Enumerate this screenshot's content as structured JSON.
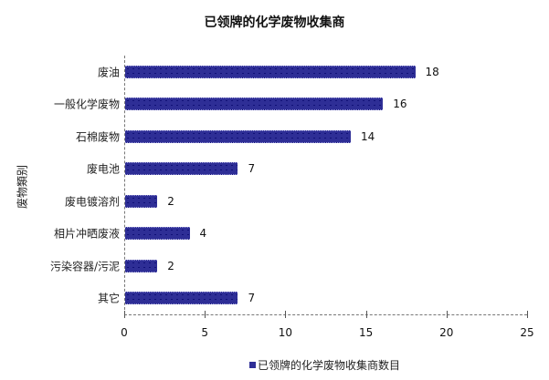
{
  "chart_data": {
    "type": "bar",
    "orientation": "horizontal",
    "title": "已领牌的化学废物收集商",
    "xlabel": "",
    "ylabel": "废物類别",
    "categories": [
      "废油",
      "一般化学废物",
      "石棉废物",
      "废电池",
      "废电镀溶剂",
      "相片冲晒废液",
      "污染容器/污泥",
      "其它"
    ],
    "series": [
      {
        "name": "已领牌的化学废物收集商数目",
        "values": [
          18,
          16,
          14,
          7,
          2,
          4,
          2,
          7
        ],
        "color": "#2e2e96"
      }
    ],
    "xlim": [
      0,
      25
    ],
    "xticks": [
      "0",
      "5",
      "10",
      "15",
      "20",
      "25"
    ],
    "data_labels": true,
    "grid": false,
    "legend_position": "bottom"
  },
  "bar_color": "#2e2e96"
}
